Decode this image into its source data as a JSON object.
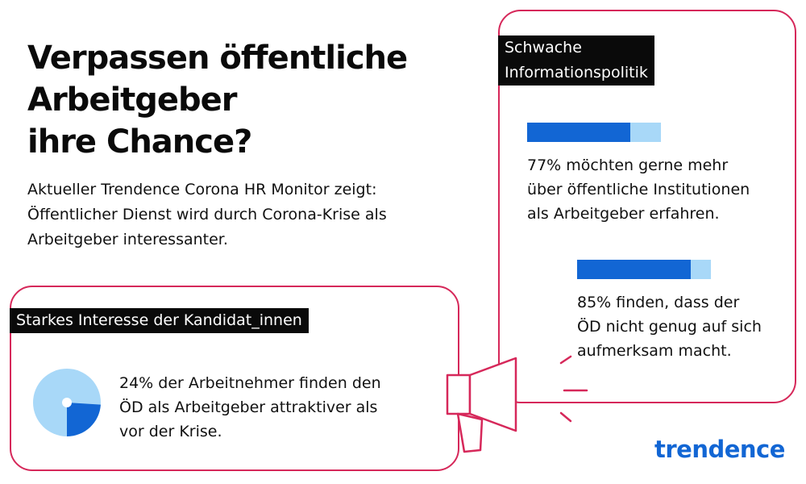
{
  "headline": {
    "lines": [
      "Verpassen öffentliche",
      "Arbeitgeber",
      "ihre Chance?"
    ]
  },
  "intro": {
    "lines": [
      "Aktueller Trendence Corona HR Monitor zeigt:",
      "Öffentlicher Dienst wird durch Corona-Krise als",
      "Arbeitgeber interessanter."
    ]
  },
  "right_card": {
    "label_lines": [
      "Schwache",
      "Informationspolitik"
    ],
    "stat1": {
      "percent": 77,
      "lines": [
        "77% möchten gerne mehr",
        "über öffentliche Institutionen",
        "als Arbeitgeber erfahren."
      ]
    },
    "stat2": {
      "percent": 85,
      "lines": [
        "85% finden, dass der",
        "ÖD nicht genug auf sich",
        "aufmerksam macht."
      ]
    }
  },
  "left_card": {
    "label": "Starkes Interesse der Kandidat_innen",
    "pie": {
      "percent": 24
    },
    "lines": [
      "24% der Arbeitnehmer finden den",
      "ÖD als Arbeitgeber attraktiver als",
      "vor der Krise."
    ]
  },
  "logo": "trendence",
  "colors": {
    "accent": "#d6285a",
    "bar_fill": "#1266d4",
    "bar_track": "#a8d8f8",
    "label_bg": "#0a0a0a"
  }
}
